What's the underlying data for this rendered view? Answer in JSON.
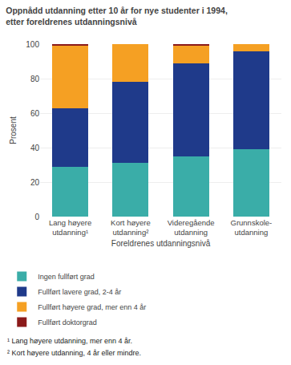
{
  "chart_data": {
    "type": "bar",
    "title": "Oppnådd utdanning etter 10 år for nye studenter i 1994,\netter foreldrenes utdanningsnivå",
    "xlabel": "Foreldrenes utdanningsnivå",
    "ylabel": "Prosent",
    "categories": [
      "Lang høyere\nutdanning¹",
      "Kort høyere\nutdanning²",
      "Videregående\nutdanning",
      "Grunnskole-\nutdanning"
    ],
    "series": [
      {
        "name": "Ingen fullført grad",
        "color": "#3aada8",
        "values": [
          29,
          31,
          35,
          39
        ]
      },
      {
        "name": "Fullført lavere grad, 2-4 år",
        "color": "#1f3a8a",
        "values": [
          34,
          47,
          54,
          57
        ]
      },
      {
        "name": "Fullført høyere grad, mer enn 4 år",
        "color": "#f5a023",
        "values": [
          36,
          22,
          10,
          4
        ]
      },
      {
        "name": "Fullført doktorgrad",
        "color": "#8b1a1a",
        "values": [
          1,
          0,
          1,
          0
        ]
      }
    ],
    "stacked": true,
    "ylim": [
      0,
      100
    ],
    "yticks": [
      0,
      20,
      40,
      60,
      80,
      100
    ],
    "grid": true,
    "legend": "bottom",
    "annotations": [
      "¹ Lang høyere utdanning, mer enn 4 år.",
      "² Kort høyere utdanning, 4 år eller mindre."
    ]
  }
}
